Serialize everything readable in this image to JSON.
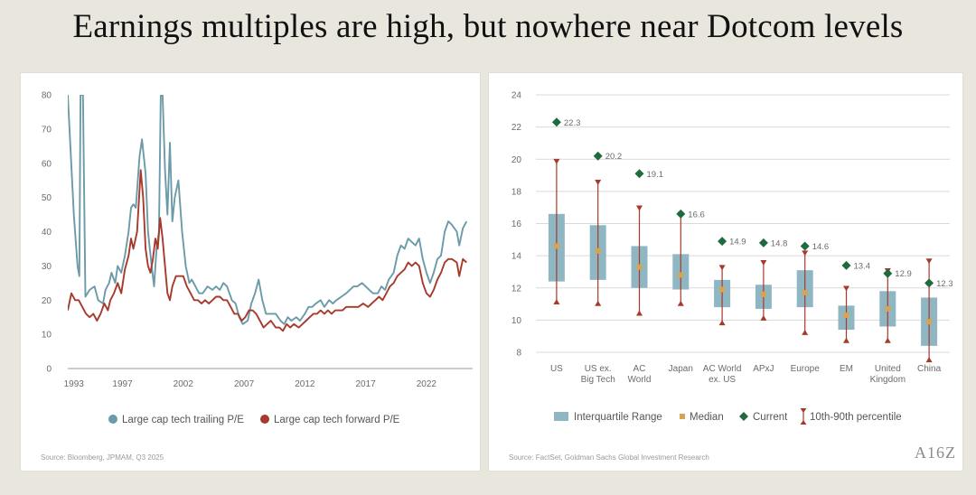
{
  "title": "Earnings multiples are high, but nowhere near Dotcom levels",
  "logo": "A16Z",
  "colors": {
    "trailing": "#6b9aa8",
    "forward": "#a63a2b",
    "box": "#8fb7c3",
    "median": "#d9a451",
    "current": "#1f6b3e",
    "whisker": "#a63a2b"
  },
  "left_source": "Source: Bloomberg, JPMAM, Q3 2025",
  "right_source": "Source: FactSet, Goldman Sachs Global Investment Research",
  "chart_data": [
    {
      "type": "line",
      "ylim": [
        0,
        80
      ],
      "yticks": [
        0,
        10,
        20,
        30,
        40,
        50,
        60,
        70,
        80
      ],
      "xlim": [
        1992.5,
        2025.8
      ],
      "xticks": [
        "1993",
        "1997",
        "2002",
        "2007",
        "2012",
        "2017",
        "2022"
      ],
      "legend": "bottom",
      "series": [
        {
          "name": "Large cap tech trailing P/E",
          "color": "#6b9aa8",
          "points": [
            [
              1992.5,
              80
            ],
            [
              1993.0,
              45
            ],
            [
              1993.3,
              30
            ],
            [
              1993.45,
              27
            ],
            [
              1993.55,
              80
            ],
            [
              1993.75,
              80
            ],
            [
              1993.95,
              21
            ],
            [
              1994.3,
              23
            ],
            [
              1994.7,
              24
            ],
            [
              1995.0,
              20
            ],
            [
              1995.4,
              19
            ],
            [
              1995.6,
              23
            ],
            [
              1995.9,
              25
            ],
            [
              1996.1,
              28
            ],
            [
              1996.4,
              25
            ],
            [
              1996.6,
              30
            ],
            [
              1996.9,
              28
            ],
            [
              1997.2,
              33
            ],
            [
              1997.5,
              40
            ],
            [
              1997.7,
              47
            ],
            [
              1997.9,
              48
            ],
            [
              1998.1,
              47
            ],
            [
              1998.4,
              62
            ],
            [
              1998.6,
              67
            ],
            [
              1998.9,
              57
            ],
            [
              1999.1,
              40
            ],
            [
              1999.4,
              30
            ],
            [
              1999.6,
              24
            ],
            [
              1999.8,
              35
            ],
            [
              2000.0,
              40
            ],
            [
              2000.15,
              80
            ],
            [
              2000.3,
              80
            ],
            [
              2000.5,
              58
            ],
            [
              2000.7,
              45
            ],
            [
              2000.9,
              66
            ],
            [
              2001.1,
              43
            ],
            [
              2001.3,
              50
            ],
            [
              2001.6,
              55
            ],
            [
              2001.9,
              40
            ],
            [
              2002.2,
              30
            ],
            [
              2002.5,
              25
            ],
            [
              2002.7,
              26
            ],
            [
              2003.0,
              24
            ],
            [
              2003.3,
              22
            ],
            [
              2003.6,
              22
            ],
            [
              2004.0,
              24
            ],
            [
              2004.4,
              23
            ],
            [
              2004.7,
              24
            ],
            [
              2005.0,
              23
            ],
            [
              2005.3,
              25
            ],
            [
              2005.6,
              24
            ],
            [
              2006.0,
              20
            ],
            [
              2006.3,
              19
            ],
            [
              2006.6,
              15
            ],
            [
              2006.9,
              13
            ],
            [
              2007.3,
              14
            ],
            [
              2007.6,
              19
            ],
            [
              2007.9,
              22
            ],
            [
              2008.2,
              26
            ],
            [
              2008.5,
              20
            ],
            [
              2008.8,
              16
            ],
            [
              2009.2,
              16
            ],
            [
              2009.6,
              16
            ],
            [
              2010.0,
              14
            ],
            [
              2010.3,
              13
            ],
            [
              2010.6,
              15
            ],
            [
              2010.9,
              14
            ],
            [
              2011.3,
              15
            ],
            [
              2011.6,
              14
            ],
            [
              2012.0,
              16
            ],
            [
              2012.3,
              18
            ],
            [
              2012.6,
              18
            ],
            [
              2012.9,
              19
            ],
            [
              2013.3,
              20
            ],
            [
              2013.6,
              18
            ],
            [
              2014.0,
              20
            ],
            [
              2014.3,
              19
            ],
            [
              2014.6,
              20
            ],
            [
              2015.0,
              21
            ],
            [
              2015.4,
              22
            ],
            [
              2015.7,
              23
            ],
            [
              2016.0,
              24
            ],
            [
              2016.3,
              24
            ],
            [
              2016.7,
              25
            ],
            [
              2017.0,
              24
            ],
            [
              2017.3,
              23
            ],
            [
              2017.6,
              22
            ],
            [
              2018.0,
              22
            ],
            [
              2018.3,
              24
            ],
            [
              2018.6,
              23
            ],
            [
              2018.9,
              26
            ],
            [
              2019.3,
              28
            ],
            [
              2019.6,
              33
            ],
            [
              2019.9,
              36
            ],
            [
              2020.2,
              35
            ],
            [
              2020.5,
              38
            ],
            [
              2020.8,
              37
            ],
            [
              2021.1,
              36
            ],
            [
              2021.4,
              38
            ],
            [
              2021.7,
              32
            ],
            [
              2022.0,
              28
            ],
            [
              2022.3,
              25
            ],
            [
              2022.6,
              28
            ],
            [
              2022.9,
              32
            ],
            [
              2023.2,
              33
            ],
            [
              2023.5,
              40
            ],
            [
              2023.8,
              43
            ],
            [
              2024.1,
              42
            ],
            [
              2024.5,
              40
            ],
            [
              2024.7,
              36
            ],
            [
              2025.0,
              41
            ],
            [
              2025.3,
              43
            ]
          ]
        },
        {
          "name": "Large cap tech forward P/E",
          "color": "#a63a2b",
          "points": [
            [
              1992.5,
              17
            ],
            [
              1992.8,
              22
            ],
            [
              1993.1,
              20
            ],
            [
              1993.4,
              20
            ],
            [
              1993.7,
              18
            ],
            [
              1994.0,
              16
            ],
            [
              1994.3,
              15
            ],
            [
              1994.6,
              16
            ],
            [
              1994.9,
              14
            ],
            [
              1995.2,
              16
            ],
            [
              1995.5,
              19
            ],
            [
              1995.8,
              17
            ],
            [
              1996.0,
              20
            ],
            [
              1996.3,
              22
            ],
            [
              1996.6,
              25
            ],
            [
              1996.9,
              22
            ],
            [
              1997.2,
              29
            ],
            [
              1997.5,
              33
            ],
            [
              1997.7,
              38
            ],
            [
              1997.9,
              35
            ],
            [
              1998.2,
              40
            ],
            [
              1998.5,
              58
            ],
            [
              1998.7,
              50
            ],
            [
              1998.9,
              35
            ],
            [
              1999.1,
              30
            ],
            [
              1999.3,
              28
            ],
            [
              1999.5,
              32
            ],
            [
              1999.7,
              38
            ],
            [
              1999.9,
              35
            ],
            [
              2000.1,
              44
            ],
            [
              2000.3,
              38
            ],
            [
              2000.5,
              30
            ],
            [
              2000.7,
              22
            ],
            [
              2000.9,
              20
            ],
            [
              2001.1,
              24
            ],
            [
              2001.4,
              27
            ],
            [
              2001.7,
              27
            ],
            [
              2002.0,
              27
            ],
            [
              2002.3,
              24
            ],
            [
              2002.6,
              22
            ],
            [
              2002.9,
              20
            ],
            [
              2003.2,
              20
            ],
            [
              2003.5,
              19
            ],
            [
              2003.8,
              20
            ],
            [
              2004.1,
              19
            ],
            [
              2004.4,
              20
            ],
            [
              2004.7,
              21
            ],
            [
              2005.0,
              21
            ],
            [
              2005.3,
              20
            ],
            [
              2005.6,
              20
            ],
            [
              2005.9,
              18
            ],
            [
              2006.2,
              16
            ],
            [
              2006.5,
              16
            ],
            [
              2006.8,
              14
            ],
            [
              2007.1,
              15
            ],
            [
              2007.4,
              17
            ],
            [
              2007.7,
              17
            ],
            [
              2008.0,
              16
            ],
            [
              2008.3,
              14
            ],
            [
              2008.6,
              12
            ],
            [
              2008.9,
              13
            ],
            [
              2009.2,
              14
            ],
            [
              2009.6,
              12
            ],
            [
              2009.9,
              12
            ],
            [
              2010.2,
              11
            ],
            [
              2010.5,
              13
            ],
            [
              2010.8,
              12
            ],
            [
              2011.1,
              13
            ],
            [
              2011.5,
              12
            ],
            [
              2011.8,
              13
            ],
            [
              2012.1,
              14
            ],
            [
              2012.4,
              15
            ],
            [
              2012.7,
              16
            ],
            [
              2013.0,
              16
            ],
            [
              2013.3,
              17
            ],
            [
              2013.6,
              16
            ],
            [
              2013.9,
              17
            ],
            [
              2014.2,
              16
            ],
            [
              2014.5,
              17
            ],
            [
              2014.8,
              17
            ],
            [
              2015.1,
              17
            ],
            [
              2015.4,
              18
            ],
            [
              2015.7,
              18
            ],
            [
              2016.0,
              18
            ],
            [
              2016.4,
              18
            ],
            [
              2016.8,
              19
            ],
            [
              2017.2,
              18
            ],
            [
              2017.5,
              19
            ],
            [
              2017.8,
              20
            ],
            [
              2018.1,
              21
            ],
            [
              2018.4,
              20
            ],
            [
              2018.7,
              22
            ],
            [
              2019.0,
              24
            ],
            [
              2019.3,
              25
            ],
            [
              2019.6,
              27
            ],
            [
              2019.9,
              28
            ],
            [
              2020.2,
              29
            ],
            [
              2020.5,
              31
            ],
            [
              2020.8,
              30
            ],
            [
              2021.1,
              31
            ],
            [
              2021.4,
              30
            ],
            [
              2021.7,
              25
            ],
            [
              2022.0,
              22
            ],
            [
              2022.3,
              21
            ],
            [
              2022.6,
              23
            ],
            [
              2022.9,
              26
            ],
            [
              2023.2,
              28
            ],
            [
              2023.5,
              31
            ],
            [
              2023.8,
              32
            ],
            [
              2024.1,
              32
            ],
            [
              2024.5,
              31
            ],
            [
              2024.7,
              27
            ],
            [
              2025.0,
              32
            ],
            [
              2025.3,
              31
            ]
          ]
        }
      ]
    },
    {
      "type": "box",
      "ylim": [
        8,
        24
      ],
      "yticks": [
        8,
        10,
        12,
        14,
        16,
        18,
        20,
        22,
        24
      ],
      "legend": "bottom",
      "legend_labels": [
        "Interquartile Range",
        "Median",
        "Current",
        "10th-90th percentile"
      ],
      "categories": [
        {
          "label": [
            "US"
          ],
          "q1": 12.4,
          "q3": 16.6,
          "median": 14.6,
          "p10": 11.2,
          "p90": 19.8,
          "current": 22.3
        },
        {
          "label": [
            "US ex.",
            "Big Tech"
          ],
          "q1": 12.5,
          "q3": 15.9,
          "median": 14.3,
          "p10": 11.1,
          "p90": 18.5,
          "current": 20.2
        },
        {
          "label": [
            "AC",
            "World"
          ],
          "q1": 12.0,
          "q3": 14.6,
          "median": 13.3,
          "p10": 10.5,
          "p90": 16.9,
          "current": 19.1
        },
        {
          "label": [
            "Japan"
          ],
          "q1": 11.9,
          "q3": 14.1,
          "median": 12.8,
          "p10": 11.1,
          "p90": 16.5,
          "current": 16.6
        },
        {
          "label": [
            "AC World",
            "ex. US"
          ],
          "q1": 10.8,
          "q3": 12.5,
          "median": 11.9,
          "p10": 9.9,
          "p90": 13.2,
          "current": 14.9
        },
        {
          "label": [
            "APxJ"
          ],
          "q1": 10.7,
          "q3": 12.2,
          "median": 11.6,
          "p10": 10.2,
          "p90": 13.5,
          "current": 14.8
        },
        {
          "label": [
            "Europe"
          ],
          "q1": 10.8,
          "q3": 13.1,
          "median": 11.7,
          "p10": 9.3,
          "p90": 14.1,
          "current": 14.6
        },
        {
          "label": [
            "EM"
          ],
          "q1": 9.4,
          "q3": 10.9,
          "median": 10.3,
          "p10": 8.8,
          "p90": 11.9,
          "current": 13.4
        },
        {
          "label": [
            "United",
            "Kingdom"
          ],
          "q1": 9.6,
          "q3": 11.8,
          "median": 10.7,
          "p10": 8.8,
          "p90": 13.0,
          "current": 12.9
        },
        {
          "label": [
            "China"
          ],
          "q1": 8.4,
          "q3": 11.4,
          "median": 9.9,
          "p10": 7.6,
          "p90": 13.6,
          "current": 12.3
        }
      ]
    }
  ]
}
